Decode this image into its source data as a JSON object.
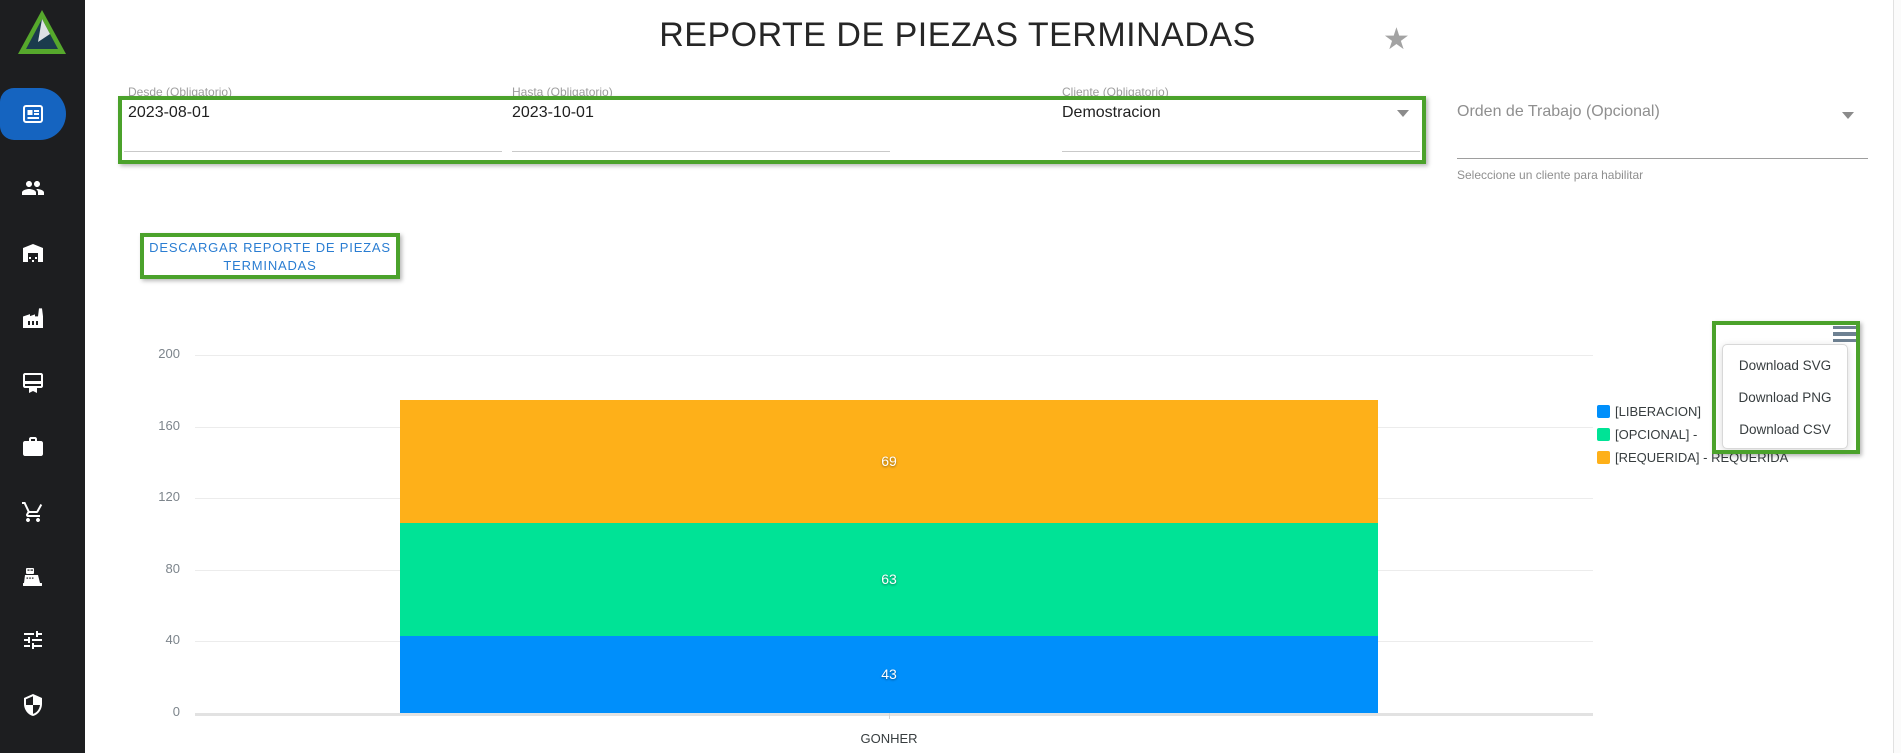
{
  "header": {
    "title": "REPORTE DE PIEZAS TERMINADAS",
    "star_icon": "★"
  },
  "sidebar": {
    "logo_icon": "triangle-mountain-logo",
    "colors": {
      "background": "#1d1e20",
      "active_pill": "#1564c0"
    },
    "items": [
      {
        "icon": "newspaper-icon",
        "active": true
      },
      {
        "icon": "users-icon",
        "active": false
      },
      {
        "icon": "warehouse-icon",
        "active": false
      },
      {
        "icon": "factory-icon",
        "active": false
      },
      {
        "icon": "certificate-icon",
        "active": false
      },
      {
        "icon": "briefcase-icon",
        "active": false
      },
      {
        "icon": "cart-icon",
        "active": false
      },
      {
        "icon": "cash-register-icon",
        "active": false
      },
      {
        "icon": "sliders-icon",
        "active": false
      },
      {
        "icon": "shield-icon",
        "active": false
      }
    ]
  },
  "filters": {
    "desde": {
      "label": "Desde (Obligatorio)",
      "value": "2023-08-01"
    },
    "hasta": {
      "label": "Hasta (Obligatorio)",
      "value": "2023-10-01"
    },
    "cliente": {
      "label": "Cliente (Obligatorio)",
      "value": "Demostracion"
    },
    "orden": {
      "placeholder": "Orden de Trabajo (Opcional)",
      "helper": "Seleccione un cliente para habilitar"
    }
  },
  "download_report_button": {
    "label": "DESCARGAR REPORTE DE PIEZAS TERMINADAS"
  },
  "chart_menu": {
    "menu_icon": "hamburger-menu-icon",
    "items": [
      "Download SVG",
      "Download PNG",
      "Download CSV"
    ]
  },
  "chart_data": {
    "type": "bar",
    "stacked": true,
    "orientation": "vertical",
    "categories": [
      "GONHER"
    ],
    "series": [
      {
        "name": "[LIBERACION]",
        "values": [
          43
        ],
        "color": "#008FFB"
      },
      {
        "name": "[OPCIONAL] -",
        "values": [
          63
        ],
        "color": "#00E396"
      },
      {
        "name": "[REQUERIDA] - REQUERIDA",
        "values": [
          69
        ],
        "color": "#FEB019"
      }
    ],
    "data_labels": true,
    "ylim": [
      0,
      200
    ],
    "yticks": [
      0,
      40,
      80,
      120,
      160,
      200
    ],
    "grid": true,
    "legend_position": "right"
  },
  "colors": {
    "annotation_green": "#4ba22b",
    "button_text_blue": "#2a7dd2",
    "bar_blue": "#008FFB",
    "bar_green": "#00E396",
    "bar_orange": "#FEB019"
  }
}
